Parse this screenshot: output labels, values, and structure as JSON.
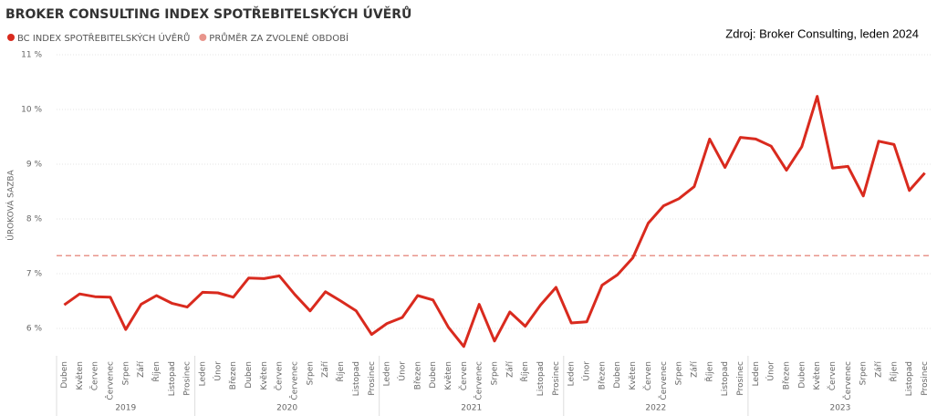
{
  "chart_data": {
    "type": "line",
    "title": "BROKER CONSULTING INDEX SPOTŘEBITELSKÝCH ÚVĚRŮ",
    "source": "Zdroj: Broker Consulting, leden 2024",
    "y_label": "ÚROKOVÁ SAZBA",
    "groups": [
      {
        "year": "2019",
        "months": [
          "Duben",
          "Květen",
          "Červen",
          "Červenec",
          "Srpen",
          "Září",
          "Říjen",
          "Listopad",
          "Prosinec"
        ]
      },
      {
        "year": "2020",
        "months": [
          "Leden",
          "Únor",
          "Březen",
          "Duben",
          "Květen",
          "Červen",
          "Červenec",
          "Srpen",
          "Září",
          "Říjen",
          "Listopad",
          "Prosinec"
        ]
      },
      {
        "year": "2021",
        "months": [
          "Leden",
          "Únor",
          "Březen",
          "Duben",
          "Květen",
          "Červen",
          "Červenec",
          "Srpen",
          "Září",
          "Říjen",
          "Listopad",
          "Prosinec"
        ]
      },
      {
        "year": "2022",
        "months": [
          "Leden",
          "Únor",
          "Březen",
          "Duben",
          "Květen",
          "Červen",
          "Červenec",
          "Srpen",
          "Září",
          "Říjen",
          "Listopad",
          "Prosinec"
        ]
      },
      {
        "year": "2023",
        "months": [
          "Leden",
          "Únor",
          "Březen",
          "Duben",
          "Květen",
          "Červen",
          "Červenec",
          "Srpen",
          "Září",
          "Říjen",
          "Listopad",
          "Prosinec"
        ]
      }
    ],
    "series": [
      {
        "name": "BC INDEX SPOTŘEBITELSKÝCH ÚVĚRŮ",
        "color": "#d92a1e",
        "values": [
          6.43,
          6.63,
          6.58,
          6.57,
          5.98,
          6.44,
          6.6,
          6.46,
          6.39,
          6.66,
          6.65,
          6.57,
          6.92,
          6.91,
          6.96,
          6.62,
          6.32,
          6.67,
          6.5,
          6.32,
          5.89,
          6.09,
          6.2,
          6.6,
          6.52,
          6.02,
          5.67,
          6.44,
          5.77,
          6.3,
          6.04,
          6.43,
          6.75,
          6.1,
          6.12,
          6.79,
          6.98,
          7.29,
          7.92,
          8.24,
          8.37,
          8.59,
          9.46,
          8.94,
          9.49,
          9.46,
          9.33,
          8.89,
          9.32,
          10.24,
          8.93,
          8.96,
          8.42,
          9.42,
          9.36,
          8.52,
          8.84
        ]
      }
    ],
    "reference_line": {
      "name": "PRŮMĚR ZA ZVOLENÉ OBDOBÍ",
      "color": "#e8958c",
      "value": 7.33
    },
    "ylim": [
      5.5,
      11
    ],
    "yticks": [
      {
        "value": 6,
        "label": "6 %"
      },
      {
        "value": 7,
        "label": "7 %"
      },
      {
        "value": 8,
        "label": "8 %"
      },
      {
        "value": 9,
        "label": "9 %"
      },
      {
        "value": 10,
        "label": "10 %"
      },
      {
        "value": 11,
        "label": "11 %"
      }
    ],
    "grid": true
  }
}
